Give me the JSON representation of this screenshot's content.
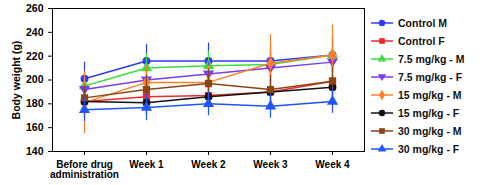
{
  "chart_data": {
    "type": "line",
    "y_label": "Body weight (g)",
    "categories": [
      "Before drug administration",
      "Week 1",
      "Week 2",
      "Week 3",
      "Week 4"
    ],
    "ylim": [
      140,
      260
    ],
    "yticks": [
      140,
      160,
      180,
      200,
      220,
      240,
      260
    ],
    "grid": false,
    "legend": "right",
    "series": [
      {
        "name": "Control M",
        "color": "#2b3cff",
        "marker": "circle",
        "values": [
          201,
          216,
          216,
          216,
          221
        ],
        "errors": [
          14,
          14,
          15,
          14,
          15
        ]
      },
      {
        "name": "Control F",
        "color": "#f02a2a",
        "marker": "square",
        "values": [
          182,
          186,
          187,
          190,
          199
        ],
        "errors": [
          12,
          10,
          10,
          12,
          14
        ]
      },
      {
        "name": "7.5 mg/kg - M",
        "color": "#3fdd3f",
        "marker": "triangle",
        "values": [
          195,
          210,
          212,
          213,
          221
        ],
        "errors": [
          12,
          12,
          12,
          12,
          12
        ]
      },
      {
        "name": "7.5 mg/kg - F",
        "color": "#7b3cf0",
        "marker": "triangle-down",
        "values": [
          192,
          200,
          205,
          210,
          215
        ],
        "errors": [
          10,
          10,
          10,
          10,
          10
        ]
      },
      {
        "name": "15 mg/kg - M",
        "color": "#ff7f27",
        "marker": "diamond",
        "values": [
          181,
          198,
          198,
          214,
          221
        ],
        "errors": [
          26,
          14,
          14,
          24,
          25
        ]
      },
      {
        "name": "15 mg/kg - F",
        "color": "#111111",
        "marker": "circle",
        "values": [
          182,
          181,
          186,
          190,
          194
        ],
        "errors": [
          10,
          10,
          10,
          10,
          10
        ]
      },
      {
        "name": "30 mg/kg - M",
        "color": "#8b4513",
        "marker": "square",
        "values": [
          185,
          192,
          197,
          192,
          199
        ],
        "errors": [
          10,
          12,
          12,
          12,
          12
        ]
      },
      {
        "name": "30 mg/kg - F",
        "color": "#1f55ff",
        "marker": "triangle",
        "values": [
          175,
          177,
          180,
          178,
          182
        ],
        "errors": [
          10,
          11,
          10,
          10,
          10
        ]
      }
    ]
  }
}
